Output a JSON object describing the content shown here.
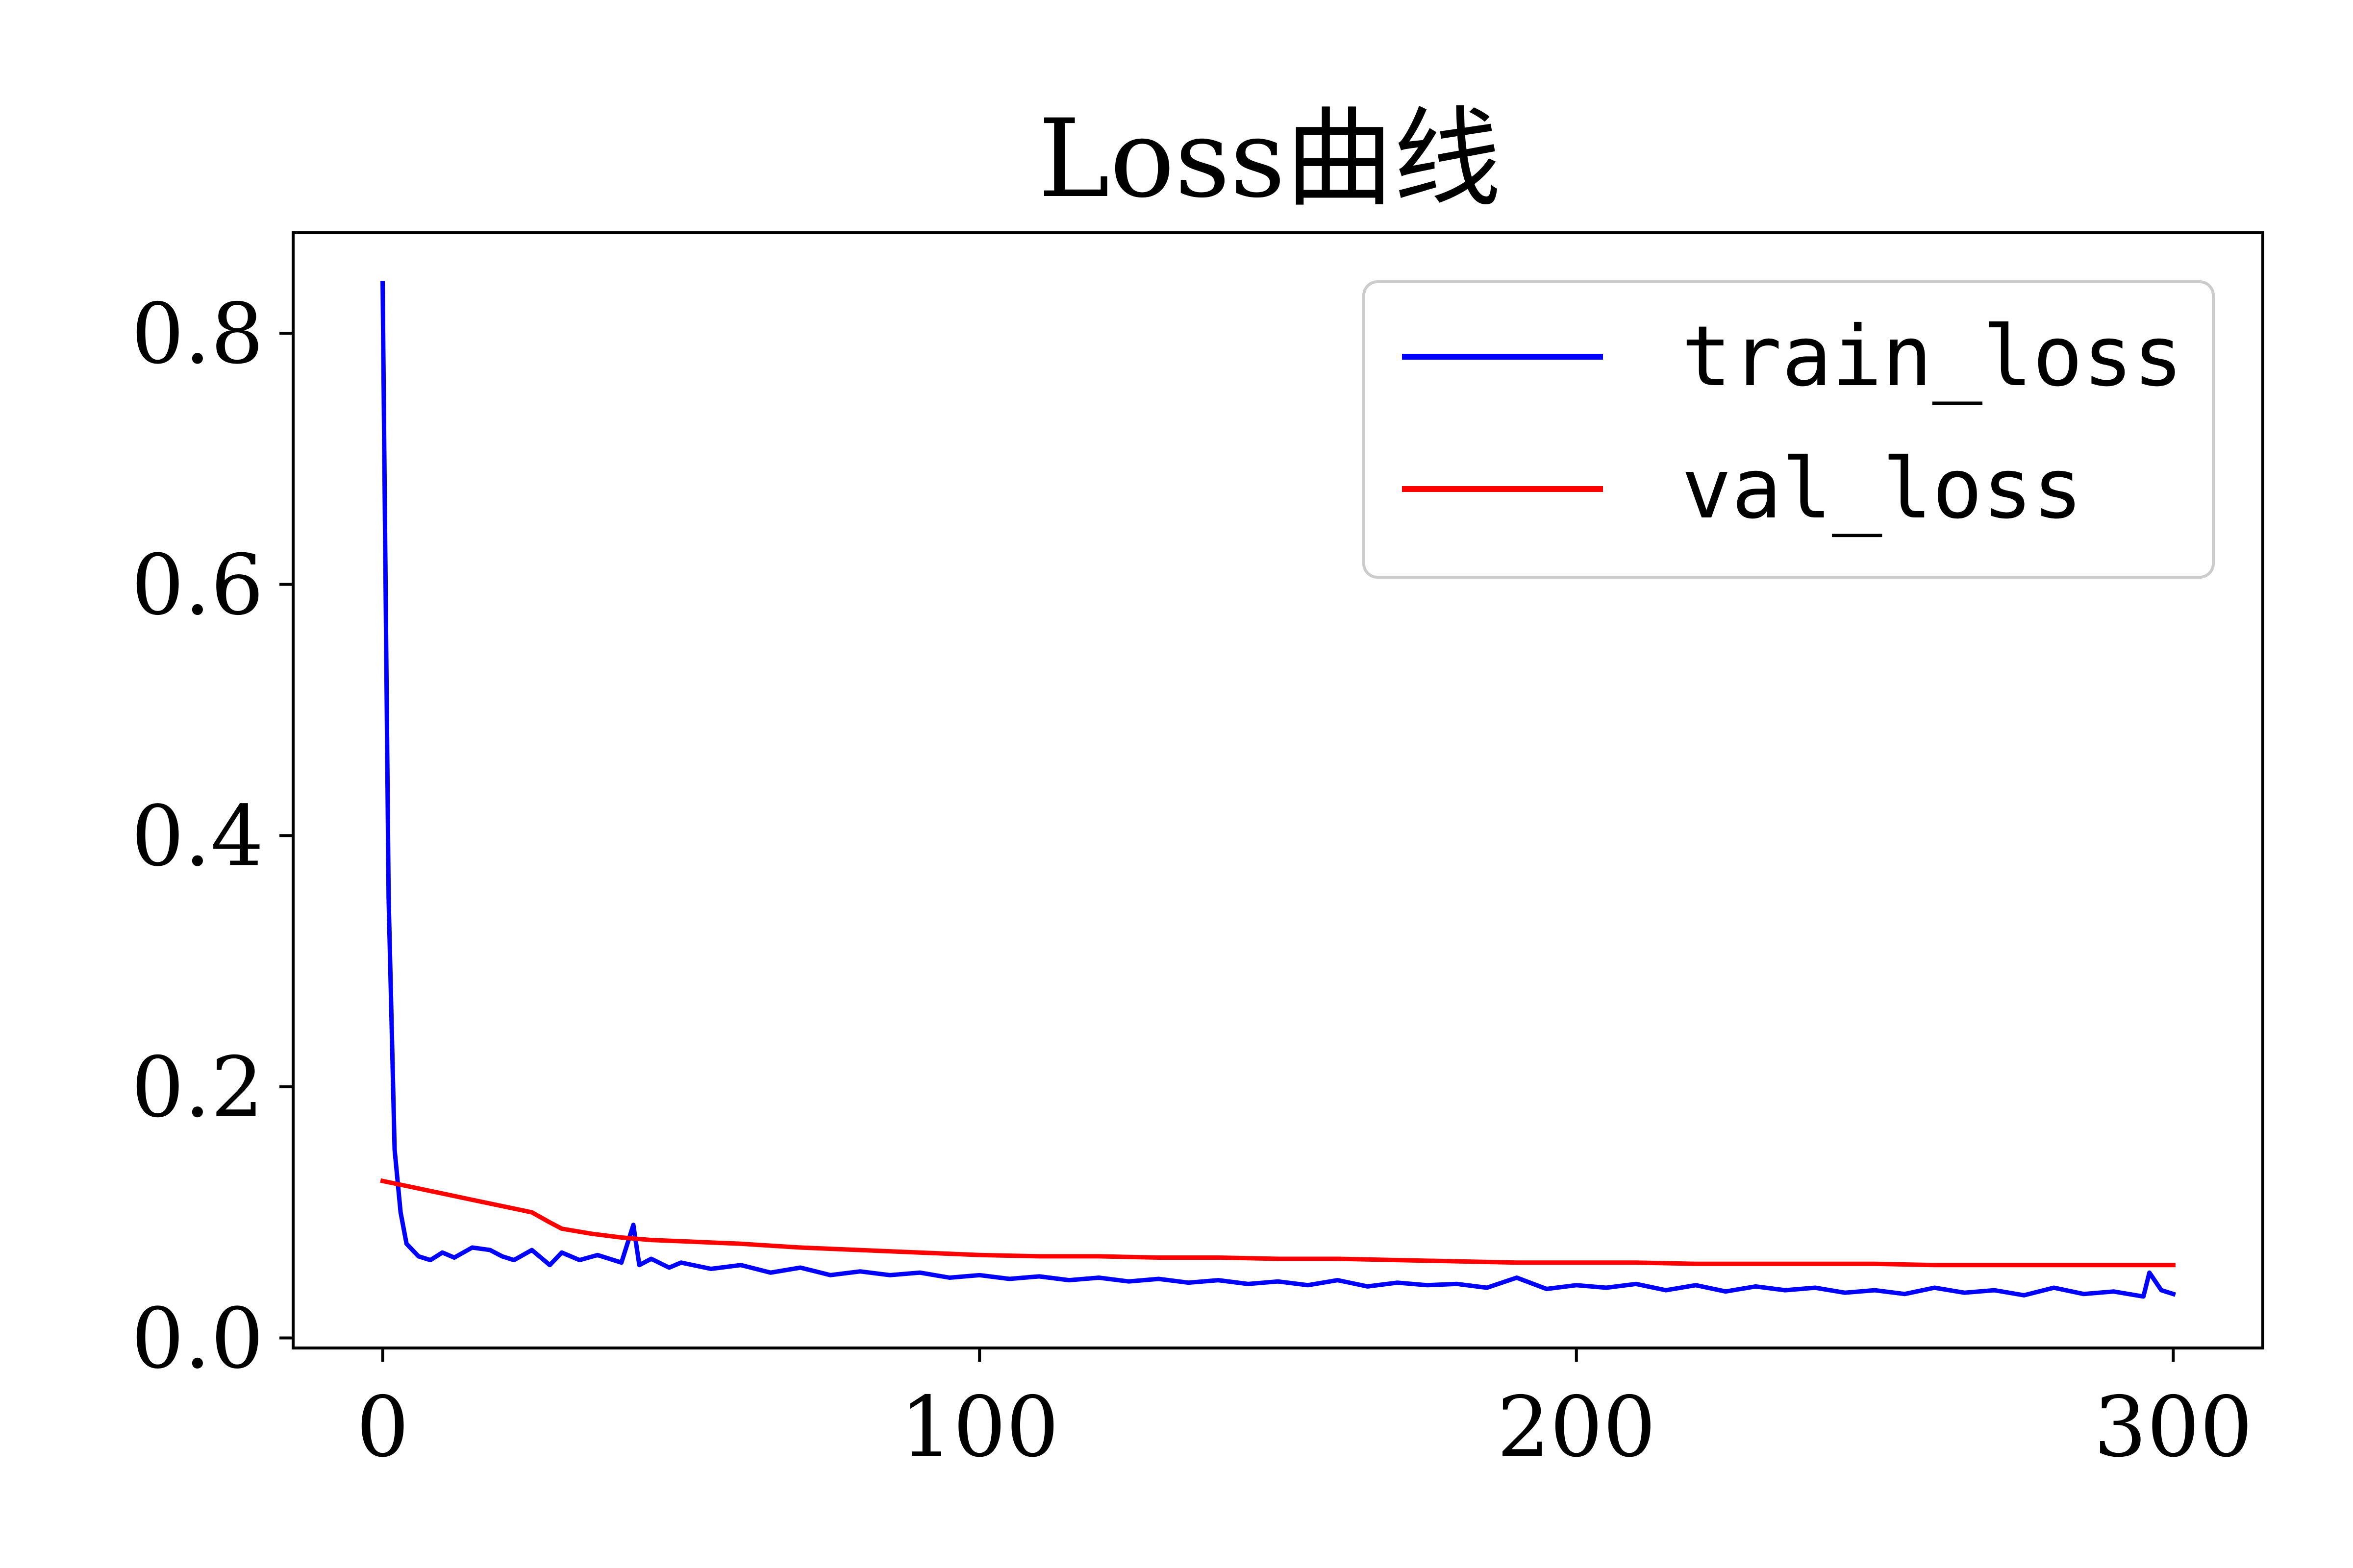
{
  "chart_data": {
    "type": "line",
    "title": "Loss曲线",
    "xlabel": "",
    "ylabel": "",
    "xlim": [
      -15,
      315
    ],
    "ylim": [
      -0.008,
      0.88
    ],
    "xticks": [
      0,
      100,
      200,
      300
    ],
    "xtick_labels": [
      "0",
      "100",
      "200",
      "300"
    ],
    "yticks": [
      0.0,
      0.2,
      0.4,
      0.6,
      0.8
    ],
    "ytick_labels": [
      "0.0",
      "0.2",
      "0.4",
      "0.6",
      "0.8"
    ],
    "grid": false,
    "legend_position": "top-right",
    "series": [
      {
        "name": "train_loss",
        "color": "#0000ff",
        "x": [
          0,
          1,
          2,
          3,
          4,
          5,
          6,
          8,
          10,
          12,
          15,
          18,
          20,
          22,
          25,
          28,
          30,
          33,
          36,
          40,
          42,
          43,
          45,
          48,
          50,
          55,
          60,
          65,
          70,
          75,
          80,
          85,
          90,
          95,
          100,
          105,
          110,
          115,
          120,
          125,
          130,
          135,
          140,
          145,
          150,
          155,
          160,
          165,
          170,
          175,
          180,
          185,
          190,
          195,
          200,
          205,
          210,
          215,
          220,
          225,
          230,
          235,
          240,
          245,
          250,
          255,
          260,
          265,
          270,
          275,
          280,
          285,
          290,
          295,
          296,
          298,
          300
        ],
        "y": [
          0.84,
          0.35,
          0.15,
          0.1,
          0.075,
          0.07,
          0.065,
          0.062,
          0.068,
          0.064,
          0.072,
          0.07,
          0.065,
          0.062,
          0.07,
          0.058,
          0.068,
          0.062,
          0.066,
          0.06,
          0.09,
          0.058,
          0.063,
          0.056,
          0.06,
          0.055,
          0.058,
          0.052,
          0.056,
          0.05,
          0.053,
          0.05,
          0.052,
          0.048,
          0.05,
          0.047,
          0.049,
          0.046,
          0.048,
          0.045,
          0.047,
          0.044,
          0.046,
          0.043,
          0.045,
          0.042,
          0.046,
          0.041,
          0.044,
          0.042,
          0.043,
          0.04,
          0.048,
          0.039,
          0.042,
          0.04,
          0.043,
          0.038,
          0.042,
          0.037,
          0.041,
          0.038,
          0.04,
          0.036,
          0.038,
          0.035,
          0.04,
          0.036,
          0.038,
          0.034,
          0.04,
          0.035,
          0.037,
          0.033,
          0.052,
          0.038,
          0.035
        ]
      },
      {
        "name": "val_loss",
        "color": "#ff0000",
        "x": [
          0,
          5,
          10,
          15,
          20,
          25,
          28,
          30,
          35,
          40,
          45,
          50,
          55,
          60,
          70,
          80,
          90,
          100,
          110,
          120,
          130,
          140,
          150,
          160,
          170,
          180,
          190,
          200,
          210,
          220,
          230,
          240,
          250,
          260,
          270,
          280,
          290,
          300
        ],
        "y": [
          0.125,
          0.12,
          0.115,
          0.11,
          0.105,
          0.1,
          0.092,
          0.087,
          0.083,
          0.08,
          0.078,
          0.077,
          0.076,
          0.075,
          0.072,
          0.07,
          0.068,
          0.066,
          0.065,
          0.065,
          0.064,
          0.064,
          0.063,
          0.063,
          0.062,
          0.061,
          0.06,
          0.06,
          0.06,
          0.059,
          0.059,
          0.059,
          0.059,
          0.058,
          0.058,
          0.058,
          0.058,
          0.058
        ]
      }
    ]
  }
}
